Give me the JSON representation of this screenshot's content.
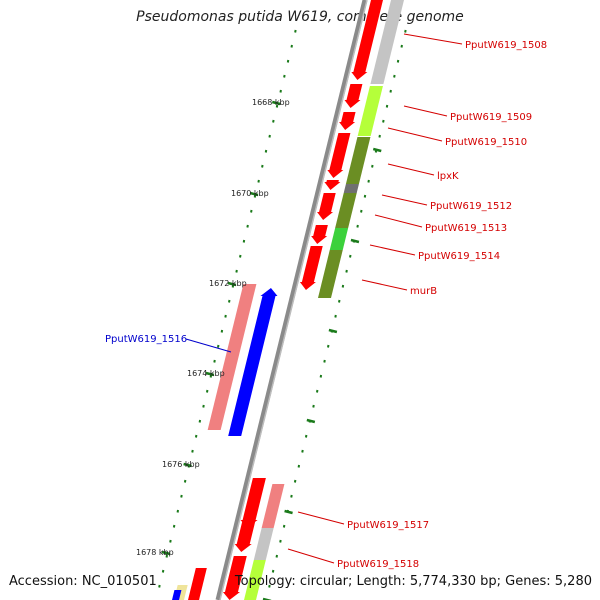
{
  "title": "Pseudomonas putida W619, complete genome",
  "footer": {
    "accession": "Accession: NC_010501",
    "topology": "Topology: circular; Length: 5,774,330 bp; Genes: 5,280"
  },
  "colors": {
    "backbone": "#8a8a8a",
    "tick": "#1a7a1a",
    "gene_red": "#ff0000",
    "label_red": "#d40000",
    "label_blue": "#0000cc",
    "blue_gene": "#0000ff",
    "pink": "#f08080",
    "lightgray": "#c4c4c4",
    "yellowgreen": "#b5ff3a",
    "olive": "#6b8e23",
    "green": "#3cd13c",
    "darkgray": "#707070",
    "khaki": "#efe49a"
  },
  "ticks": [
    "1668 kbp",
    "1670 kbp",
    "1672 kbp",
    "1674 kbp",
    "1676 kbp",
    "1678 kbp"
  ],
  "genes": [
    {
      "label": "PputW619_1508",
      "strand": "+"
    },
    {
      "label": "PputW619_1509",
      "strand": "+"
    },
    {
      "label": "PputW619_1510",
      "strand": "+"
    },
    {
      "label": "lpxK",
      "strand": "+"
    },
    {
      "label": "PputW619_1512",
      "strand": "+"
    },
    {
      "label": "PputW619_1513",
      "strand": "+"
    },
    {
      "label": "PputW619_1514",
      "strand": "+"
    },
    {
      "label": "murB",
      "strand": "+"
    },
    {
      "label": "PputW619_1516",
      "strand": "-"
    },
    {
      "label": "PputW619_1517",
      "strand": "+"
    },
    {
      "label": "PputW619_1518",
      "strand": "+"
    }
  ]
}
